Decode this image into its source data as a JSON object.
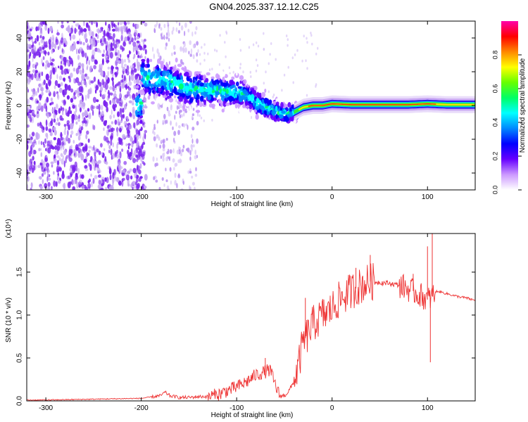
{
  "title": "GN04.2025.337.12.12.C25",
  "colors": {
    "line": "#ee3333",
    "axis": "#000000",
    "colorbar": [
      "#ff00aa",
      "#ff0000",
      "#ff8800",
      "#ffff00",
      "#66ff00",
      "#00ff66",
      "#00ffff",
      "#0088ff",
      "#0000ff",
      "#6600ff",
      "#cc99ff",
      "#ffffff"
    ]
  },
  "chart_data": [
    {
      "type": "heatmap",
      "name": "spectrogram",
      "xlabel": "Height of straight line (km)",
      "ylabel": "Frequency (Hz)",
      "xlim": [
        -320,
        150
      ],
      "ylim": [
        -50,
        50
      ],
      "xticks": [
        -300,
        -200,
        -100,
        0,
        100
      ],
      "xtick_labels": [
        "-300",
        "-200",
        "-100",
        "0",
        "100"
      ],
      "yticks": [
        -40,
        -20,
        0,
        20,
        40
      ],
      "ytick_labels": [
        "-40",
        "-20",
        "0",
        "20",
        "40"
      ],
      "colorbar": {
        "label": "Normalized spectral amplitude",
        "range": [
          0,
          1
        ],
        "ticks": [
          0.0,
          0.2,
          0.4,
          0.6,
          0.8
        ],
        "tick_labels": [
          "0.0",
          "0.2",
          "0.4",
          "0.6",
          "0.8"
        ]
      },
      "ridge": {
        "x": [
          -200,
          -190,
          -180,
          -170,
          -160,
          -150,
          -140,
          -130,
          -120,
          -110,
          -100,
          -90,
          -80,
          -70,
          -60,
          -50,
          -40,
          -30,
          -20,
          -10,
          0,
          20,
          40,
          60,
          80,
          100,
          120,
          150
        ],
        "y": [
          18,
          16,
          15,
          14,
          12,
          10,
          9,
          9,
          9,
          8,
          8,
          6,
          2,
          -1,
          -3,
          -5,
          -4,
          -1,
          0,
          0,
          1,
          0.5,
          0.5,
          0.5,
          0.5,
          1,
          0.5,
          0.5
        ]
      }
    },
    {
      "type": "line",
      "name": "snr",
      "xlabel": "Height of straight line (km)",
      "ylabel": "SNR (10 * v/v)",
      "scale_label": "(x10⁴)",
      "xlim": [
        -320,
        150
      ],
      "ylim": [
        0,
        1.95
      ],
      "xticks": [
        -300,
        -200,
        -100,
        0,
        100
      ],
      "xtick_labels": [
        "-300",
        "-200",
        "-100",
        "0",
        "100"
      ],
      "yticks": [
        0.0,
        0.5,
        1.0,
        1.5
      ],
      "ytick_labels": [
        "0.0",
        "0.5",
        "1.0",
        "1.5"
      ],
      "series": [
        {
          "name": "SNR",
          "x": [
            -320,
            -300,
            -250,
            -200,
            -180,
            -175,
            -170,
            -160,
            -150,
            -140,
            -130,
            -120,
            -110,
            -100,
            -90,
            -80,
            -70,
            -65,
            -60,
            -55,
            -50,
            -45,
            -40,
            -35,
            -30,
            -25,
            -20,
            -15,
            -10,
            -5,
            0,
            5,
            10,
            15,
            20,
            25,
            30,
            35,
            40,
            45,
            50,
            60,
            70,
            75,
            80,
            85,
            90,
            95,
            100,
            103,
            105,
            110,
            120,
            130,
            140,
            150
          ],
          "y": [
            0.01,
            0.01,
            0.02,
            0.03,
            0.06,
            0.1,
            0.06,
            0.04,
            0.04,
            0.05,
            0.05,
            0.07,
            0.12,
            0.16,
            0.22,
            0.3,
            0.34,
            0.36,
            0.2,
            0.06,
            0.06,
            0.12,
            0.22,
            0.42,
            0.7,
            0.78,
            0.9,
            0.94,
            1.0,
            1.02,
            1.08,
            1.15,
            1.2,
            1.24,
            1.28,
            1.31,
            1.34,
            1.37,
            1.39,
            1.39,
            1.38,
            1.37,
            1.35,
            1.33,
            1.3,
            1.28,
            1.24,
            1.22,
            1.18,
            1.2,
            1.22,
            1.28,
            1.25,
            1.22,
            1.2,
            1.17
          ],
          "spikes": [
            {
              "x": -70,
              "y": 0.5
            },
            {
              "x": -28,
              "y": 1.2
            },
            {
              "x": 25,
              "y": 1.55
            },
            {
              "x": 40,
              "y": 1.7
            },
            {
              "x": 85,
              "y": 1.48
            },
            {
              "x": 100,
              "y": 1.8
            },
            {
              "x": 103,
              "y": 0.45
            },
            {
              "x": 105,
              "y": 1.95
            }
          ]
        }
      ]
    }
  ]
}
